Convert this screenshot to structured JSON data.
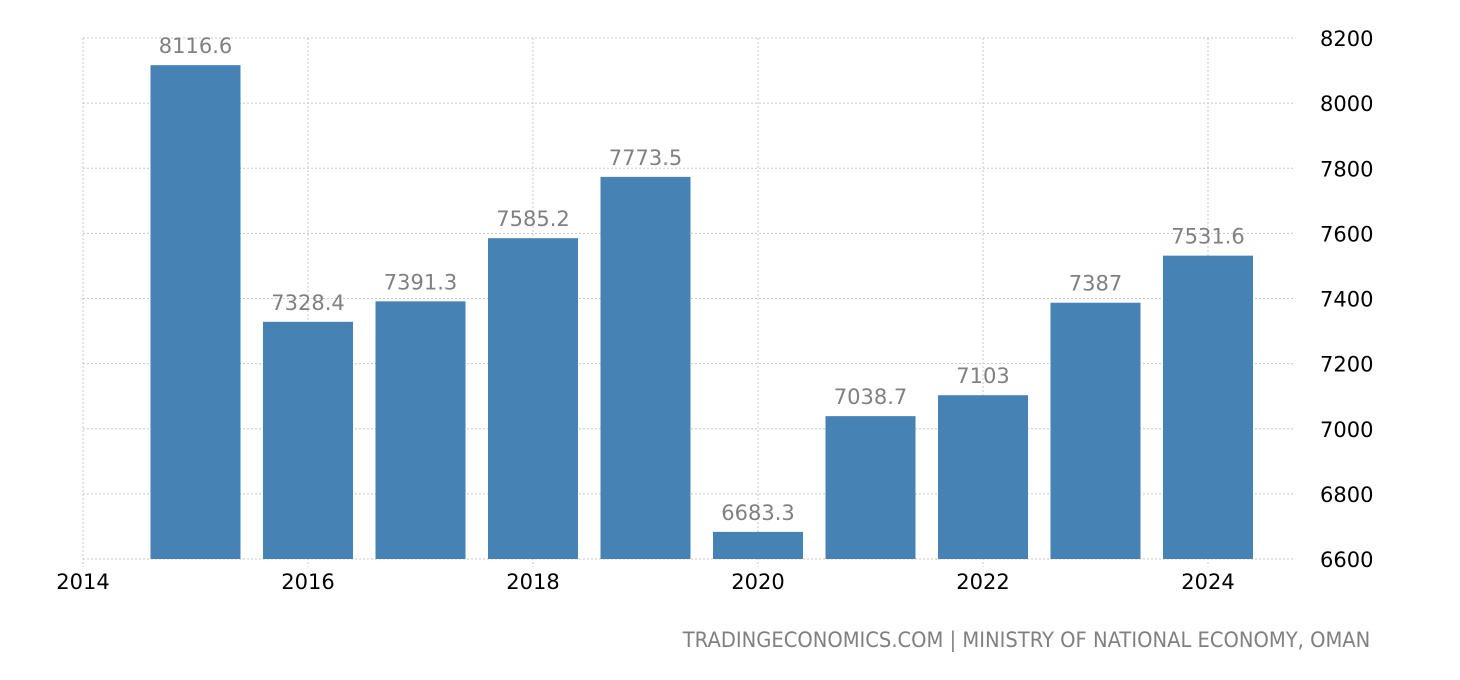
{
  "chart_data": {
    "type": "bar",
    "title": "",
    "xlabel": "",
    "ylabel": "",
    "categories": [
      "2015",
      "2016",
      "2017",
      "2018",
      "2019",
      "2020",
      "2021",
      "2022",
      "2023",
      "2024"
    ],
    "values": [
      8116.6,
      7328.4,
      7391.3,
      7585.2,
      7773.5,
      6683.3,
      7038.7,
      7103,
      7387,
      7531.6
    ],
    "value_labels": [
      "8116.6",
      "7328.4",
      "7391.3",
      "7585.2",
      "7773.5",
      "6683.3",
      "7038.7",
      "7103",
      "7387",
      "7531.6"
    ],
    "ylim": [
      6600,
      8200
    ],
    "y_ticks": [
      6600,
      6800,
      7000,
      7200,
      7400,
      7600,
      7800,
      8000,
      8200
    ],
    "x_ticks": [
      "2014",
      "2016",
      "2018",
      "2020",
      "2022",
      "2024"
    ],
    "y_axis_position": "right",
    "grid": true,
    "legend": null,
    "bar_color": "#4682b4"
  },
  "footer": {
    "source": "TRADINGECONOMICS.COM | MINISTRY OF NATIONAL ECONOMY, OMAN"
  }
}
